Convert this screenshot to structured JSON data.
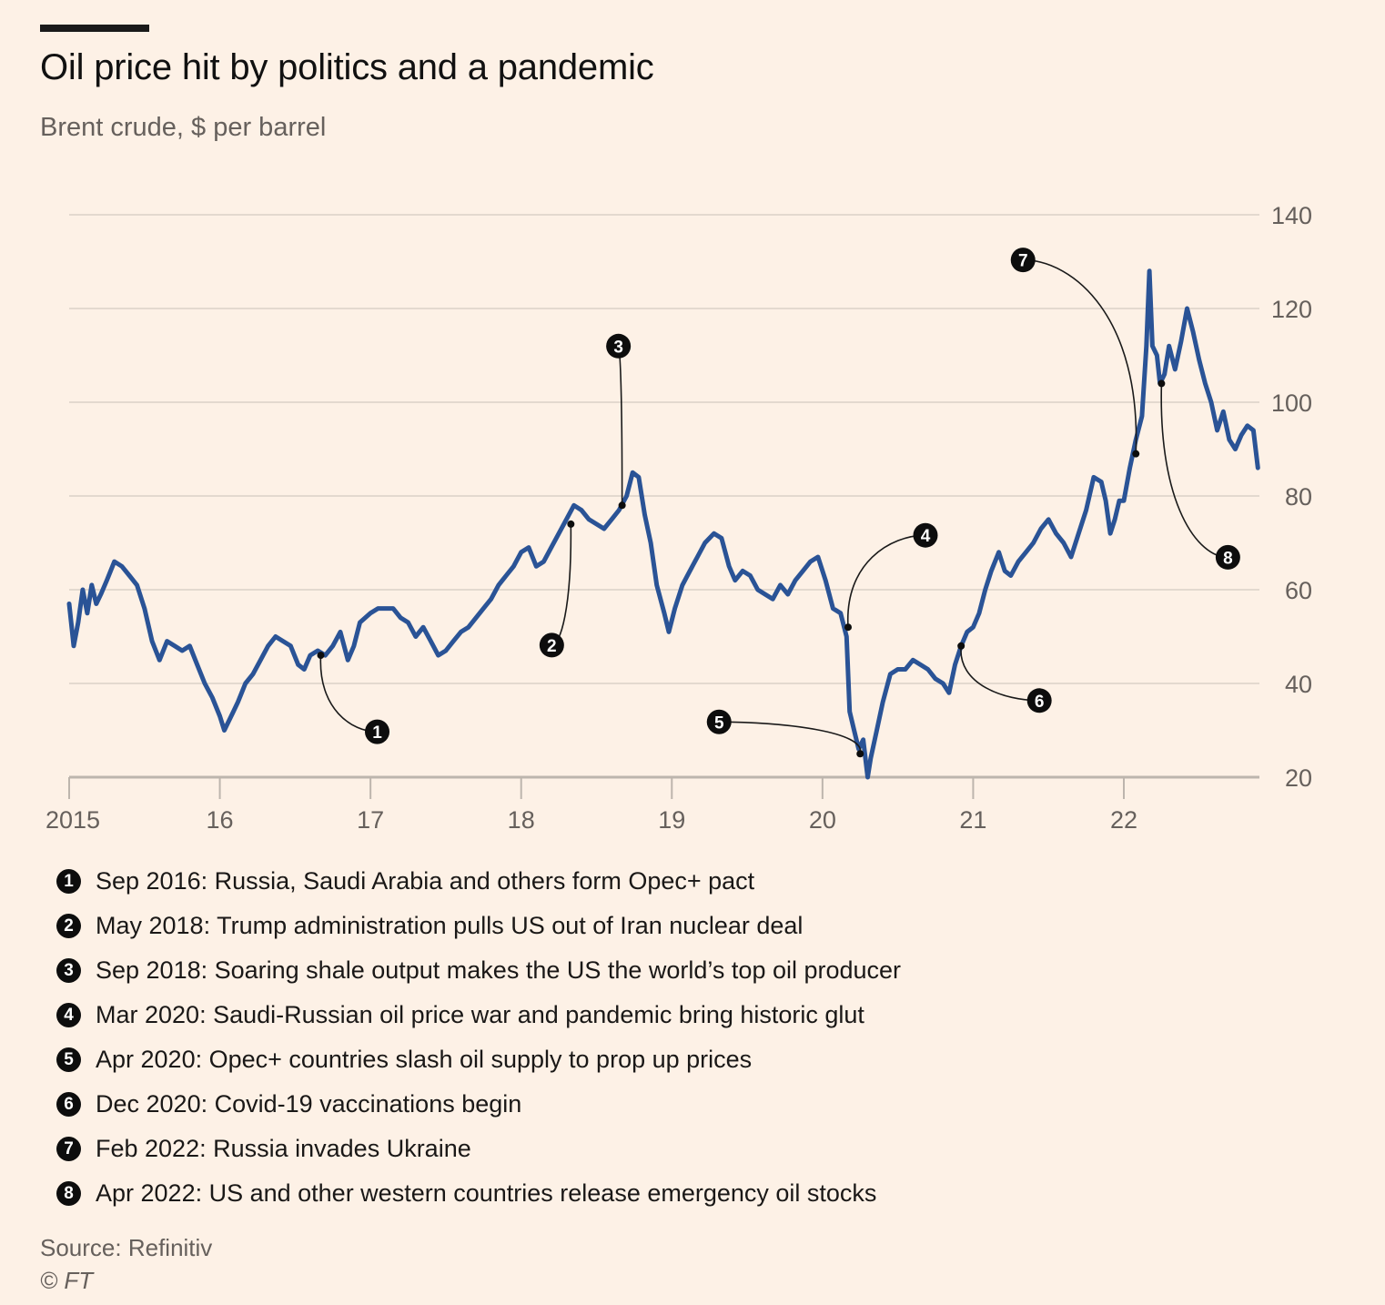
{
  "title": "Oil price hit by politics and a pandemic",
  "subtitle": "Brent crude, $ per barrel",
  "source": "Source: Refinitiv",
  "copyright": "© FT",
  "colors": {
    "line": "#2a5396",
    "background": "#fdf1e6",
    "grid": "#e3d9cf",
    "text": "#66605c"
  },
  "notes": [
    {
      "num": "1",
      "text": "Sep 2016: Russia, Saudi Arabia and others form Opec+ pact"
    },
    {
      "num": "2",
      "text": "May 2018: Trump administration pulls US out of Iran nuclear deal"
    },
    {
      "num": "3",
      "text": "Sep 2018: Soaring shale output makes the US the world’s top oil producer"
    },
    {
      "num": "4",
      "text": "Mar 2020: Saudi-Russian oil price war and pandemic bring historic glut"
    },
    {
      "num": "5",
      "text": "Apr 2020: Opec+ countries slash oil supply to prop up prices"
    },
    {
      "num": "6",
      "text": "Dec 2020: Covid-19 vaccinations begin"
    },
    {
      "num": "7",
      "text": "Feb 2022: Russia invades Ukraine"
    },
    {
      "num": "8",
      "text": "Apr 2022: US and other western countries release emergency oil stocks"
    }
  ],
  "chart_data": {
    "type": "line",
    "title": "Oil price hit by politics and a pandemic",
    "subtitle": "Brent crude, $ per barrel",
    "x_tick_labels": [
      "2015",
      "16",
      "17",
      "18",
      "19",
      "20",
      "21",
      "22"
    ],
    "x_ticks": [
      2015,
      2016,
      2017,
      2018,
      2019,
      2020,
      2021,
      2022
    ],
    "y_ticks": [
      20,
      40,
      60,
      80,
      100,
      120,
      140
    ],
    "y_axis_side": "right",
    "xlim": [
      2015.0,
      2022.9
    ],
    "ylim": [
      20,
      140
    ],
    "grid": true,
    "series": [
      {
        "points": [
          [
            2015.0,
            57
          ],
          [
            2015.03,
            48
          ],
          [
            2015.06,
            53
          ],
          [
            2015.09,
            60
          ],
          [
            2015.12,
            55
          ],
          [
            2015.15,
            61
          ],
          [
            2015.18,
            57
          ],
          [
            2015.21,
            59
          ],
          [
            2015.25,
            62
          ],
          [
            2015.3,
            66
          ],
          [
            2015.35,
            65
          ],
          [
            2015.4,
            63
          ],
          [
            2015.45,
            61
          ],
          [
            2015.5,
            56
          ],
          [
            2015.55,
            49
          ],
          [
            2015.6,
            45
          ],
          [
            2015.65,
            49
          ],
          [
            2015.7,
            48
          ],
          [
            2015.75,
            47
          ],
          [
            2015.8,
            48
          ],
          [
            2015.85,
            44
          ],
          [
            2015.9,
            40
          ],
          [
            2015.95,
            37
          ],
          [
            2016.0,
            33
          ],
          [
            2016.03,
            30
          ],
          [
            2016.06,
            32
          ],
          [
            2016.09,
            34
          ],
          [
            2016.12,
            36
          ],
          [
            2016.17,
            40
          ],
          [
            2016.22,
            42
          ],
          [
            2016.27,
            45
          ],
          [
            2016.32,
            48
          ],
          [
            2016.37,
            50
          ],
          [
            2016.42,
            49
          ],
          [
            2016.47,
            48
          ],
          [
            2016.52,
            44
          ],
          [
            2016.56,
            43
          ],
          [
            2016.6,
            46
          ],
          [
            2016.65,
            47
          ],
          [
            2016.7,
            46
          ],
          [
            2016.75,
            48
          ],
          [
            2016.8,
            51
          ],
          [
            2016.85,
            45
          ],
          [
            2016.89,
            48
          ],
          [
            2016.93,
            53
          ],
          [
            2017.0,
            55
          ],
          [
            2017.05,
            56
          ],
          [
            2017.1,
            56
          ],
          [
            2017.15,
            56
          ],
          [
            2017.2,
            54
          ],
          [
            2017.25,
            53
          ],
          [
            2017.3,
            50
          ],
          [
            2017.35,
            52
          ],
          [
            2017.4,
            49
          ],
          [
            2017.45,
            46
          ],
          [
            2017.5,
            47
          ],
          [
            2017.55,
            49
          ],
          [
            2017.6,
            51
          ],
          [
            2017.65,
            52
          ],
          [
            2017.7,
            54
          ],
          [
            2017.75,
            56
          ],
          [
            2017.8,
            58
          ],
          [
            2017.85,
            61
          ],
          [
            2017.9,
            63
          ],
          [
            2017.95,
            65
          ],
          [
            2018.0,
            68
          ],
          [
            2018.05,
            69
          ],
          [
            2018.1,
            65
          ],
          [
            2018.15,
            66
          ],
          [
            2018.2,
            69
          ],
          [
            2018.25,
            72
          ],
          [
            2018.3,
            75
          ],
          [
            2018.35,
            78
          ],
          [
            2018.4,
            77
          ],
          [
            2018.45,
            75
          ],
          [
            2018.5,
            74
          ],
          [
            2018.55,
            73
          ],
          [
            2018.6,
            75
          ],
          [
            2018.65,
            77
          ],
          [
            2018.7,
            80
          ],
          [
            2018.74,
            85
          ],
          [
            2018.78,
            84
          ],
          [
            2018.82,
            76
          ],
          [
            2018.86,
            70
          ],
          [
            2018.9,
            61
          ],
          [
            2018.95,
            55
          ],
          [
            2018.98,
            51
          ],
          [
            2019.02,
            56
          ],
          [
            2019.07,
            61
          ],
          [
            2019.12,
            64
          ],
          [
            2019.17,
            67
          ],
          [
            2019.22,
            70
          ],
          [
            2019.28,
            72
          ],
          [
            2019.33,
            71
          ],
          [
            2019.38,
            65
          ],
          [
            2019.42,
            62
          ],
          [
            2019.47,
            64
          ],
          [
            2019.52,
            63
          ],
          [
            2019.57,
            60
          ],
          [
            2019.62,
            59
          ],
          [
            2019.67,
            58
          ],
          [
            2019.72,
            61
          ],
          [
            2019.77,
            59
          ],
          [
            2019.82,
            62
          ],
          [
            2019.87,
            64
          ],
          [
            2019.92,
            66
          ],
          [
            2019.97,
            67
          ],
          [
            2020.02,
            62
          ],
          [
            2020.07,
            56
          ],
          [
            2020.12,
            55
          ],
          [
            2020.16,
            50
          ],
          [
            2020.18,
            34
          ],
          [
            2020.21,
            30
          ],
          [
            2020.24,
            26
          ],
          [
            2020.27,
            28
          ],
          [
            2020.3,
            20
          ],
          [
            2020.32,
            24
          ],
          [
            2020.36,
            30
          ],
          [
            2020.4,
            36
          ],
          [
            2020.45,
            42
          ],
          [
            2020.5,
            43
          ],
          [
            2020.55,
            43
          ],
          [
            2020.6,
            45
          ],
          [
            2020.65,
            44
          ],
          [
            2020.7,
            43
          ],
          [
            2020.75,
            41
          ],
          [
            2020.8,
            40
          ],
          [
            2020.84,
            38
          ],
          [
            2020.88,
            44
          ],
          [
            2020.92,
            48
          ],
          [
            2020.96,
            51
          ],
          [
            2021.0,
            52
          ],
          [
            2021.04,
            55
          ],
          [
            2021.08,
            60
          ],
          [
            2021.12,
            64
          ],
          [
            2021.17,
            68
          ],
          [
            2021.21,
            64
          ],
          [
            2021.25,
            63
          ],
          [
            2021.3,
            66
          ],
          [
            2021.35,
            68
          ],
          [
            2021.4,
            70
          ],
          [
            2021.45,
            73
          ],
          [
            2021.5,
            75
          ],
          [
            2021.55,
            72
          ],
          [
            2021.6,
            70
          ],
          [
            2021.65,
            67
          ],
          [
            2021.7,
            72
          ],
          [
            2021.75,
            77
          ],
          [
            2021.8,
            84
          ],
          [
            2021.85,
            83
          ],
          [
            2021.88,
            79
          ],
          [
            2021.91,
            72
          ],
          [
            2021.94,
            75
          ],
          [
            2021.97,
            79
          ],
          [
            2022.0,
            79
          ],
          [
            2022.04,
            86
          ],
          [
            2022.08,
            92
          ],
          [
            2022.12,
            97
          ],
          [
            2022.15,
            112
          ],
          [
            2022.17,
            128
          ],
          [
            2022.19,
            112
          ],
          [
            2022.22,
            110
          ],
          [
            2022.24,
            104
          ],
          [
            2022.27,
            106
          ],
          [
            2022.3,
            112
          ],
          [
            2022.34,
            107
          ],
          [
            2022.38,
            113
          ],
          [
            2022.42,
            120
          ],
          [
            2022.46,
            115
          ],
          [
            2022.5,
            109
          ],
          [
            2022.54,
            104
          ],
          [
            2022.58,
            100
          ],
          [
            2022.62,
            94
          ],
          [
            2022.66,
            98
          ],
          [
            2022.7,
            92
          ],
          [
            2022.74,
            90
          ],
          [
            2022.78,
            93
          ],
          [
            2022.82,
            95
          ],
          [
            2022.86,
            94
          ],
          [
            2022.89,
            86
          ]
        ]
      }
    ],
    "annotations": [
      {
        "num": "1",
        "x": 2016.67,
        "y": 46
      },
      {
        "num": "2",
        "x": 2018.33,
        "y": 74
      },
      {
        "num": "3",
        "x": 2018.67,
        "y": 78
      },
      {
        "num": "4",
        "x": 2020.17,
        "y": 52
      },
      {
        "num": "5",
        "x": 2020.25,
        "y": 25
      },
      {
        "num": "6",
        "x": 2020.92,
        "y": 48
      },
      {
        "num": "7",
        "x": 2022.08,
        "y": 89
      },
      {
        "num": "8",
        "x": 2022.25,
        "y": 104
      }
    ]
  }
}
